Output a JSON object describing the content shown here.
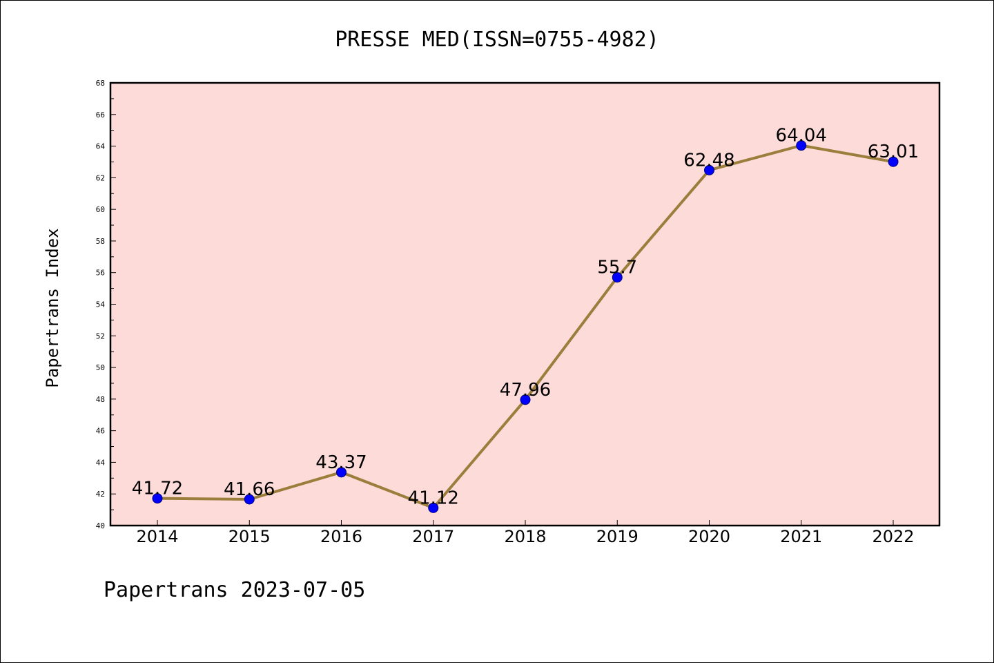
{
  "chart_data": {
    "type": "line",
    "title": "PRESSE MED(ISSN=0755-4982)",
    "xlabel": "",
    "ylabel": "Papertrans Index",
    "footer": "Papertrans 2023-07-05",
    "categories": [
      "2014",
      "2015",
      "2016",
      "2017",
      "2018",
      "2019",
      "2020",
      "2021",
      "2022"
    ],
    "series": [
      {
        "values": [
          41.72,
          41.66,
          43.37,
          41.12,
          47.96,
          55.7,
          62.48,
          64.04,
          63.01
        ],
        "labels": [
          "41.72",
          "41.66",
          "43.37",
          "41.12",
          "47.96",
          "55.7",
          "62.48",
          "64.04",
          "63.01"
        ]
      }
    ],
    "ylim": [
      40,
      68
    ],
    "yticks": [
      40,
      42,
      44,
      46,
      48,
      50,
      52,
      54,
      56,
      58,
      60,
      62,
      64,
      66,
      68
    ],
    "grid": false,
    "colors": {
      "plot_background": "#fddbd9",
      "line": "#9b7e3c",
      "marker": "#0000ff",
      "axis": "#000000"
    }
  }
}
